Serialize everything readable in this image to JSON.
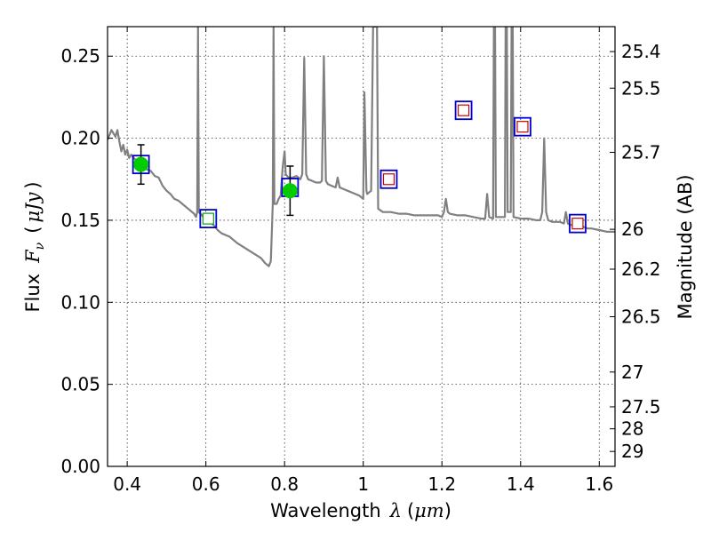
{
  "chart_data": {
    "type": "scatter",
    "xlabel": {
      "prefix": "Wavelength",
      "symbol": "λ",
      "unit_open": "(",
      "unit": "μm",
      "unit_close": ")"
    },
    "ylabel": {
      "prefix": "Flux",
      "symbol": "F",
      "subscript": "ν",
      "unit": "μJy"
    },
    "y2label": "Magnitude (AB)",
    "xlim": [
      0.35,
      1.64
    ],
    "ylim": [
      0.0,
      0.268
    ],
    "grid": true,
    "x_ticks": [
      {
        "value": 0.4,
        "label": "0.4"
      },
      {
        "value": 0.6,
        "label": "0.6"
      },
      {
        "value": 0.8,
        "label": "0.8"
      },
      {
        "value": 1.0,
        "label": "1"
      },
      {
        "value": 1.2,
        "label": "1.2"
      },
      {
        "value": 1.4,
        "label": "1.4"
      },
      {
        "value": 1.6,
        "label": "1.6"
      }
    ],
    "y_ticks": [
      {
        "value": 0.0,
        "label": "0.00"
      },
      {
        "value": 0.05,
        "label": "0.05"
      },
      {
        "value": 0.1,
        "label": "0.10"
      },
      {
        "value": 0.15,
        "label": "0.15"
      },
      {
        "value": 0.2,
        "label": "0.20"
      },
      {
        "value": 0.25,
        "label": "0.25"
      }
    ],
    "y2_ticks": [
      {
        "flux": 0.2528,
        "label": "25.4"
      },
      {
        "flux": 0.2305,
        "label": "25.5"
      },
      {
        "flux": 0.1914,
        "label": "25.7"
      },
      {
        "flux": 0.1445,
        "label": "26"
      },
      {
        "flux": 0.1202,
        "label": "26.2"
      },
      {
        "flux": 0.0912,
        "label": "26.5"
      },
      {
        "flux": 0.0575,
        "label": "27"
      },
      {
        "flux": 0.0363,
        "label": "27.5"
      },
      {
        "flux": 0.0229,
        "label": "28"
      },
      {
        "flux": 0.0091,
        "label": "29"
      }
    ],
    "series": [
      {
        "kind": "model",
        "color": "#808080",
        "points": [
          [
            0.35,
            0.199
          ],
          [
            0.36,
            0.205
          ],
          [
            0.37,
            0.201
          ],
          [
            0.375,
            0.205
          ],
          [
            0.38,
            0.198
          ],
          [
            0.385,
            0.192
          ],
          [
            0.39,
            0.196
          ],
          [
            0.395,
            0.19
          ],
          [
            0.4,
            0.193
          ],
          [
            0.405,
            0.188
          ],
          [
            0.41,
            0.19
          ],
          [
            0.42,
            0.187
          ],
          [
            0.43,
            0.186
          ],
          [
            0.44,
            0.184
          ],
          [
            0.45,
            0.181
          ],
          [
            0.46,
            0.18
          ],
          [
            0.47,
            0.177
          ],
          [
            0.48,
            0.176
          ],
          [
            0.49,
            0.171
          ],
          [
            0.5,
            0.168
          ],
          [
            0.51,
            0.166
          ],
          [
            0.52,
            0.163
          ],
          [
            0.53,
            0.162
          ],
          [
            0.54,
            0.16
          ],
          [
            0.55,
            0.158
          ],
          [
            0.56,
            0.156
          ],
          [
            0.57,
            0.154
          ],
          [
            0.575,
            0.152
          ],
          [
            0.578,
            0.155
          ],
          [
            0.58,
            0.268
          ],
          [
            0.582,
            0.155
          ],
          [
            0.59,
            0.153
          ],
          [
            0.6,
            0.15
          ],
          [
            0.61,
            0.149
          ],
          [
            0.62,
            0.147
          ],
          [
            0.63,
            0.144
          ],
          [
            0.64,
            0.142
          ],
          [
            0.66,
            0.14
          ],
          [
            0.68,
            0.136
          ],
          [
            0.7,
            0.133
          ],
          [
            0.72,
            0.13
          ],
          [
            0.74,
            0.127
          ],
          [
            0.75,
            0.124
          ],
          [
            0.755,
            0.123
          ],
          [
            0.76,
            0.122
          ],
          [
            0.765,
            0.125
          ],
          [
            0.768,
            0.145
          ],
          [
            0.77,
            0.16
          ],
          [
            0.772,
            0.268
          ],
          [
            0.774,
            0.16
          ],
          [
            0.78,
            0.16
          ],
          [
            0.785,
            0.163
          ],
          [
            0.79,
            0.165
          ],
          [
            0.795,
            0.182
          ],
          [
            0.8,
            0.192
          ],
          [
            0.803,
            0.178
          ],
          [
            0.81,
            0.176
          ],
          [
            0.82,
            0.176
          ],
          [
            0.83,
            0.177
          ],
          [
            0.84,
            0.175
          ],
          [
            0.845,
            0.178
          ],
          [
            0.85,
            0.249
          ],
          [
            0.855,
            0.178
          ],
          [
            0.86,
            0.175
          ],
          [
            0.87,
            0.174
          ],
          [
            0.88,
            0.173
          ],
          [
            0.89,
            0.173
          ],
          [
            0.895,
            0.174
          ],
          [
            0.9,
            0.25
          ],
          [
            0.905,
            0.174
          ],
          [
            0.91,
            0.172
          ],
          [
            0.92,
            0.171
          ],
          [
            0.93,
            0.17
          ],
          [
            0.935,
            0.176
          ],
          [
            0.94,
            0.17
          ],
          [
            0.95,
            0.169
          ],
          [
            0.96,
            0.168
          ],
          [
            0.97,
            0.167
          ],
          [
            0.98,
            0.166
          ],
          [
            0.99,
            0.165
          ],
          [
            1.0,
            0.163
          ],
          [
            1.003,
            0.228
          ],
          [
            1.008,
            0.168
          ],
          [
            1.01,
            0.166
          ],
          [
            1.02,
            0.168
          ],
          [
            1.025,
            0.268
          ],
          [
            1.03,
            0.268
          ],
          [
            1.035,
            0.268
          ],
          [
            1.038,
            0.157
          ],
          [
            1.05,
            0.155
          ],
          [
            1.07,
            0.155
          ],
          [
            1.09,
            0.154
          ],
          [
            1.11,
            0.154
          ],
          [
            1.13,
            0.153
          ],
          [
            1.15,
            0.153
          ],
          [
            1.17,
            0.153
          ],
          [
            1.19,
            0.153
          ],
          [
            1.2,
            0.152
          ],
          [
            1.205,
            0.155
          ],
          [
            1.21,
            0.163
          ],
          [
            1.215,
            0.155
          ],
          [
            1.22,
            0.154
          ],
          [
            1.24,
            0.153
          ],
          [
            1.26,
            0.153
          ],
          [
            1.28,
            0.152
          ],
          [
            1.3,
            0.151
          ],
          [
            1.31,
            0.151
          ],
          [
            1.315,
            0.166
          ],
          [
            1.32,
            0.152
          ],
          [
            1.33,
            0.151
          ],
          [
            1.332,
            0.268
          ],
          [
            1.335,
            0.268
          ],
          [
            1.337,
            0.152
          ],
          [
            1.36,
            0.152
          ],
          [
            1.362,
            0.268
          ],
          [
            1.365,
            0.268
          ],
          [
            1.367,
            0.155
          ],
          [
            1.375,
            0.155
          ],
          [
            1.377,
            0.268
          ],
          [
            1.38,
            0.268
          ],
          [
            1.382,
            0.152
          ],
          [
            1.4,
            0.151
          ],
          [
            1.42,
            0.151
          ],
          [
            1.44,
            0.15
          ],
          [
            1.45,
            0.15
          ],
          [
            1.455,
            0.155
          ],
          [
            1.46,
            0.2
          ],
          [
            1.465,
            0.155
          ],
          [
            1.47,
            0.15
          ],
          [
            1.48,
            0.149
          ],
          [
            1.5,
            0.149
          ],
          [
            1.51,
            0.148
          ],
          [
            1.515,
            0.155
          ],
          [
            1.52,
            0.148
          ],
          [
            1.53,
            0.147
          ],
          [
            1.55,
            0.147
          ],
          [
            1.57,
            0.145
          ],
          [
            1.58,
            0.145
          ],
          [
            1.6,
            0.144
          ],
          [
            1.62,
            0.143
          ],
          [
            1.64,
            0.143
          ]
        ]
      },
      {
        "kind": "detections",
        "color": "#00cc00",
        "points": [
          {
            "x": 0.435,
            "y": 0.184,
            "yerr": 0.012
          },
          {
            "x": 0.814,
            "y": 0.168,
            "yerr": 0.015
          }
        ]
      },
      {
        "kind": "model_photometry",
        "color": "#0000cc",
        "points": [
          {
            "x": 0.435,
            "y": 0.184
          },
          {
            "x": 0.606,
            "y": 0.151
          },
          {
            "x": 0.814,
            "y": 0.17
          },
          {
            "x": 1.065,
            "y": 0.175
          },
          {
            "x": 1.255,
            "y": 0.217
          },
          {
            "x": 1.405,
            "y": 0.207
          },
          {
            "x": 1.545,
            "y": 0.148
          }
        ]
      },
      {
        "kind": "observed",
        "color": "#cc0000",
        "points": [
          {
            "x": 1.065,
            "y": 0.175
          },
          {
            "x": 1.255,
            "y": 0.217
          },
          {
            "x": 1.405,
            "y": 0.207
          },
          {
            "x": 1.545,
            "y": 0.148
          }
        ]
      },
      {
        "kind": "observed_green_square",
        "color": "#00aa00",
        "points": [
          {
            "x": 0.606,
            "y": 0.151
          }
        ]
      }
    ]
  }
}
